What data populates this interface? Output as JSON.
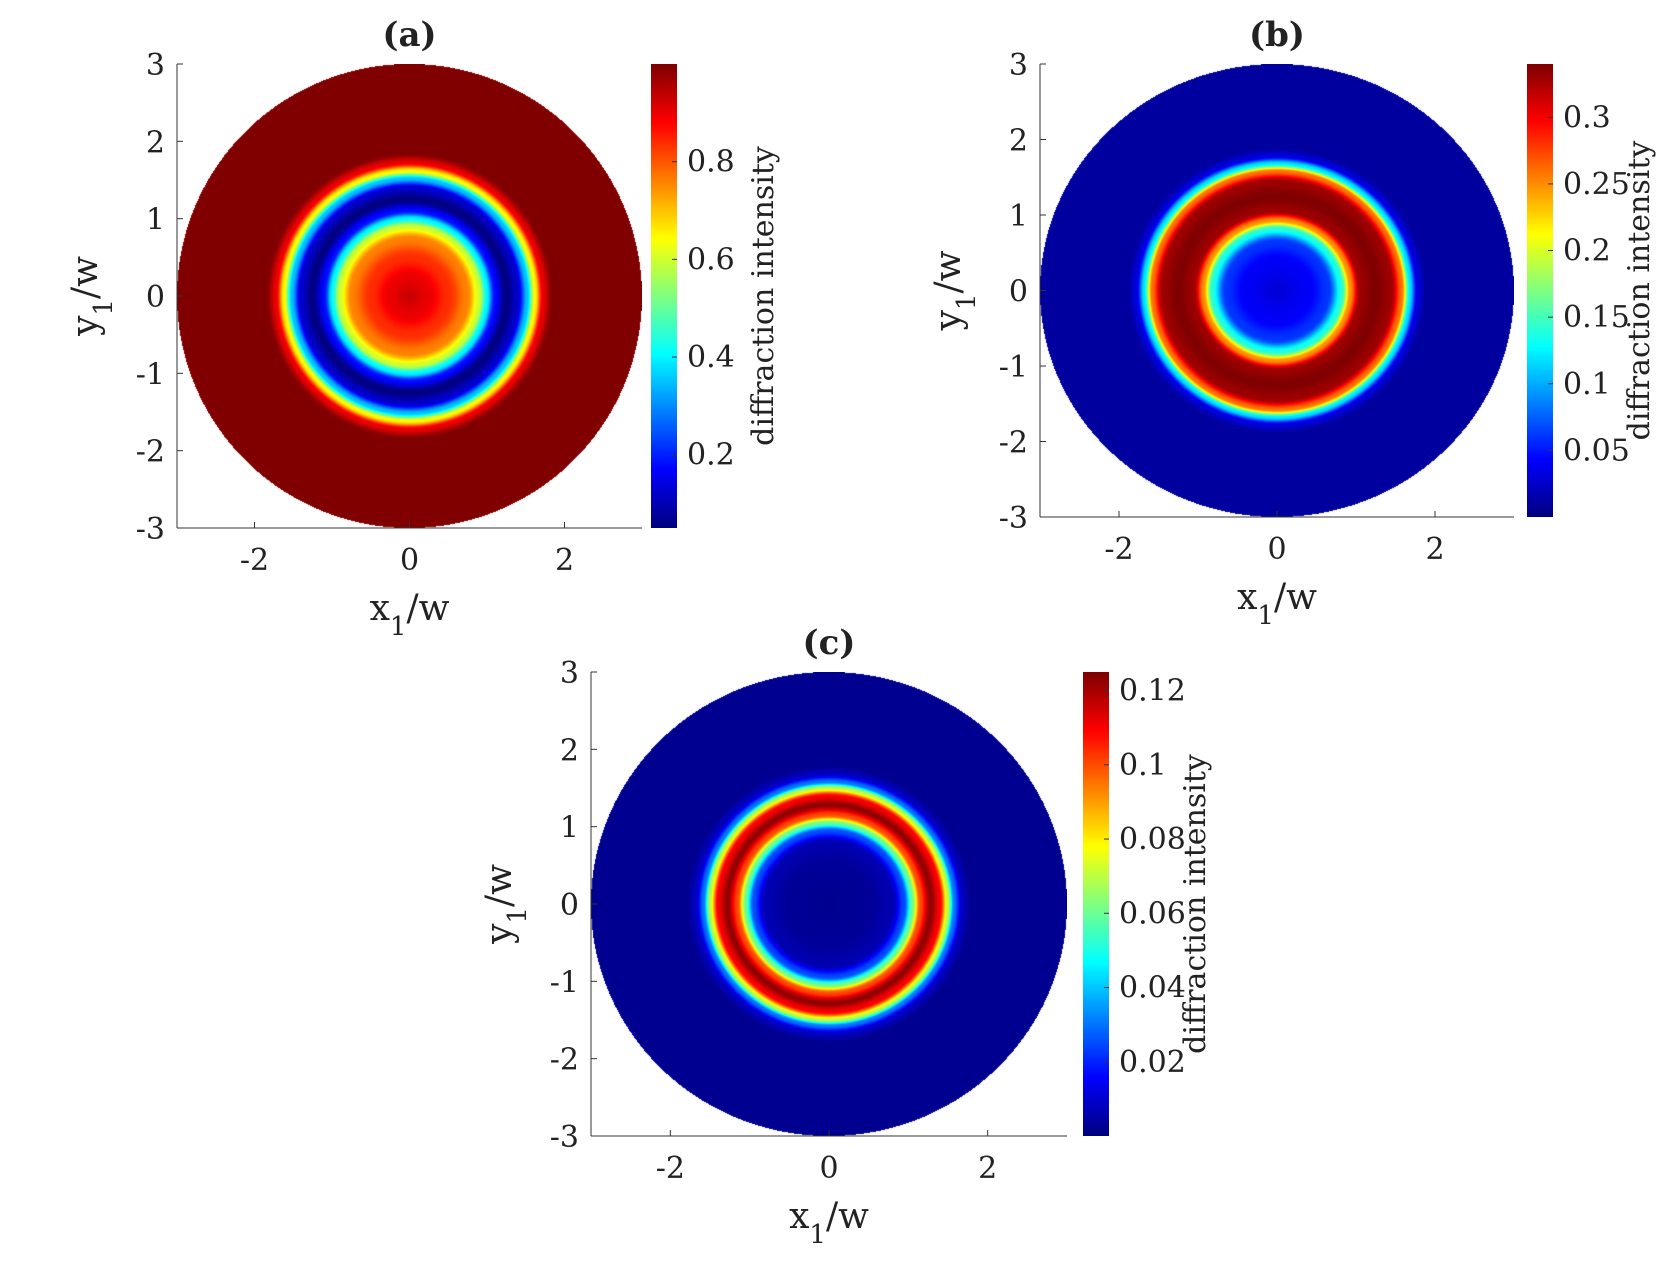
{
  "chart_data": [
    {
      "type": "heatmap",
      "panel": "a",
      "title": "(a)",
      "xlabel": "x1/w",
      "ylabel": "y1/w",
      "xlim": [
        -3,
        3
      ],
      "ylim": [
        -3,
        3
      ],
      "xticks": [
        "-2",
        "0",
        "2"
      ],
      "yticks": [
        "3",
        "2",
        "1",
        "0",
        "-1",
        "-2",
        "-3"
      ],
      "aperture_radius": 3,
      "colorbar": {
        "label": "diffraction intensity",
        "colormap": "jet",
        "range": [
          0.05,
          1.0
        ],
        "ticks": [
          "0.2",
          "0.4",
          "0.6",
          "0.8"
        ],
        "tick_values": [
          0.2,
          0.4,
          0.6,
          0.8
        ]
      },
      "radial_profile": [
        {
          "r": 0.0,
          "v": 0.93
        },
        {
          "r": 0.25,
          "v": 0.9
        },
        {
          "r": 0.5,
          "v": 0.84
        },
        {
          "r": 0.75,
          "v": 0.76
        },
        {
          "r": 0.9,
          "v": 0.6
        },
        {
          "r": 1.0,
          "v": 0.4
        },
        {
          "r": 1.1,
          "v": 0.18
        },
        {
          "r": 1.25,
          "v": 0.05
        },
        {
          "r": 1.4,
          "v": 0.12
        },
        {
          "r": 1.52,
          "v": 0.35
        },
        {
          "r": 1.62,
          "v": 0.65
        },
        {
          "r": 1.72,
          "v": 0.9
        },
        {
          "r": 1.85,
          "v": 1.0
        },
        {
          "r": 3.0,
          "v": 1.0
        }
      ]
    },
    {
      "type": "heatmap",
      "panel": "b",
      "title": "(b)",
      "xlabel": "x1/w",
      "ylabel": "y1/w",
      "xlim": [
        -3,
        3
      ],
      "ylim": [
        -3,
        3
      ],
      "xticks": [
        "-2",
        "0",
        "2"
      ],
      "yticks": [
        "3",
        "2",
        "1",
        "0",
        "-1",
        "-2",
        "-3"
      ],
      "aperture_radius": 3,
      "colorbar": {
        "label": "diffraction intensity",
        "colormap": "jet",
        "range": [
          0.0,
          0.34
        ],
        "ticks": [
          "0.3",
          "0.25",
          "0.2",
          "0.15",
          "0.1",
          "0.05"
        ],
        "tick_values": [
          0.3,
          0.25,
          0.2,
          0.15,
          0.1,
          0.05
        ]
      },
      "radial_profile": [
        {
          "r": 0.0,
          "v": 0.03
        },
        {
          "r": 0.4,
          "v": 0.04
        },
        {
          "r": 0.65,
          "v": 0.06
        },
        {
          "r": 0.82,
          "v": 0.14
        },
        {
          "r": 0.93,
          "v": 0.25
        },
        {
          "r": 1.05,
          "v": 0.33
        },
        {
          "r": 1.25,
          "v": 0.34
        },
        {
          "r": 1.45,
          "v": 0.33
        },
        {
          "r": 1.58,
          "v": 0.26
        },
        {
          "r": 1.68,
          "v": 0.12
        },
        {
          "r": 1.78,
          "v": 0.03
        },
        {
          "r": 1.9,
          "v": 0.01
        },
        {
          "r": 3.0,
          "v": 0.01
        }
      ]
    },
    {
      "type": "heatmap",
      "panel": "c",
      "title": "(c)",
      "xlabel": "x1/w",
      "ylabel": "y1/w",
      "xlim": [
        -3,
        3
      ],
      "ylim": [
        -3,
        3
      ],
      "xticks": [
        "-2",
        "0",
        "2"
      ],
      "yticks": [
        "3",
        "2",
        "1",
        "0",
        "-1",
        "-2",
        "-3"
      ],
      "aperture_radius": 3,
      "colorbar": {
        "label": "diffraction intensity",
        "colormap": "jet",
        "range": [
          0.0,
          0.125
        ],
        "ticks": [
          "0.12",
          "0.1",
          "0.08",
          "0.06",
          "0.04",
          "0.02"
        ],
        "tick_values": [
          0.12,
          0.1,
          0.08,
          0.06,
          0.04,
          0.02
        ]
      },
      "radial_profile": [
        {
          "r": 0.0,
          "v": 0.002
        },
        {
          "r": 0.5,
          "v": 0.003
        },
        {
          "r": 0.8,
          "v": 0.006
        },
        {
          "r": 0.95,
          "v": 0.025
        },
        {
          "r": 1.05,
          "v": 0.06
        },
        {
          "r": 1.15,
          "v": 0.1
        },
        {
          "r": 1.28,
          "v": 0.123
        },
        {
          "r": 1.4,
          "v": 0.11
        },
        {
          "r": 1.5,
          "v": 0.07
        },
        {
          "r": 1.58,
          "v": 0.03
        },
        {
          "r": 1.68,
          "v": 0.008
        },
        {
          "r": 1.8,
          "v": 0.002
        },
        {
          "r": 3.0,
          "v": 0.002
        }
      ]
    }
  ]
}
